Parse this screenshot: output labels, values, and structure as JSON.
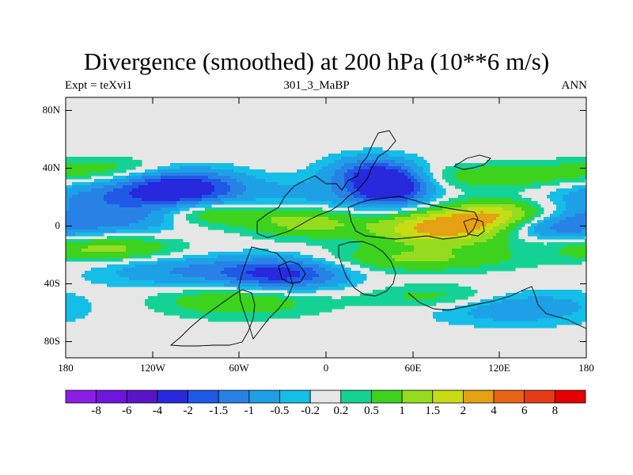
{
  "title": "Divergence (smoothed) at 200 hPa (10**6 m/s)",
  "subtitle_left": "Expt = teXvi1",
  "subtitle_center": "301_3_MaBP",
  "subtitle_right": "ANN",
  "y_axis_labels": [
    "80N",
    "40N",
    "0",
    "40S",
    "80S"
  ],
  "x_axis_labels": [
    "180",
    "120W",
    "60W",
    "0",
    "60E",
    "120E",
    "180"
  ],
  "colorbar": {
    "labels": [
      "-8",
      "-6",
      "-4",
      "-2",
      "-1.5",
      "-1",
      "-0.5",
      "-0.2",
      "0.2",
      "0.5",
      "1",
      "1.5",
      "2",
      "4",
      "6",
      "8"
    ],
    "colors": [
      "#8c1ee6",
      "#6e14dc",
      "#5a14c8",
      "#2828dc",
      "#1e5ae6",
      "#2882e6",
      "#1ea0e6",
      "#14bee6",
      "#e6e6e6",
      "#14d296",
      "#3cd21e",
      "#96dc1e",
      "#c8dc14",
      "#e6a014",
      "#e66414",
      "#e63c14",
      "#e60000"
    ]
  },
  "chart_data": {
    "type": "heatmap",
    "title": "Divergence (smoothed) at 200 hPa (10**6 m/s)",
    "experiment": "teXvi1",
    "case": "301_3_MaBP",
    "season": "ANN",
    "units": "10**6 m/s",
    "lon_range": [
      -180,
      180
    ],
    "lat_range": [
      -90,
      90
    ],
    "contour_levels": [
      -8,
      -6,
      -4,
      -2,
      -1.5,
      -1,
      -0.5,
      -0.2,
      0.2,
      0.5,
      1,
      1.5,
      2,
      4,
      6,
      8
    ],
    "features": [
      {
        "lon": -100,
        "lat": 28,
        "value": -2.5,
        "sigma_lon": 28,
        "sigma_lat": 9
      },
      {
        "lon": -150,
        "lat": 20,
        "value": -1.2,
        "sigma_lon": 40,
        "sigma_lat": 9
      },
      {
        "lon": 45,
        "lat": 28,
        "value": -2.5,
        "sigma_lon": 18,
        "sigma_lat": 9
      },
      {
        "lon": 30,
        "lat": 38,
        "value": -1.5,
        "sigma_lon": 20,
        "sigma_lat": 8
      },
      {
        "lon": 0,
        "lat": 20,
        "value": -0.8,
        "sigma_lon": 45,
        "sigma_lat": 10
      },
      {
        "lon": -30,
        "lat": -32,
        "value": -2.2,
        "sigma_lon": 30,
        "sigma_lat": 8
      },
      {
        "lon": -100,
        "lat": -30,
        "value": -1.0,
        "sigma_lon": 40,
        "sigma_lat": 8
      },
      {
        "lon": 150,
        "lat": 0,
        "value": -1.4,
        "sigma_lon": 30,
        "sigma_lat": 6
      },
      {
        "lon": -150,
        "lat": 5,
        "value": -1.0,
        "sigma_lon": 35,
        "sigma_lat": 6
      },
      {
        "lon": 130,
        "lat": -55,
        "value": -1.0,
        "sigma_lon": 40,
        "sigma_lat": 8
      },
      {
        "lon": 80,
        "lat": 0,
        "value": 2.3,
        "sigma_lon": 35,
        "sigma_lat": 9
      },
      {
        "lon": 120,
        "lat": 8,
        "value": 1.6,
        "sigma_lon": 25,
        "sigma_lat": 8
      },
      {
        "lon": -15,
        "lat": 5,
        "value": 1.4,
        "sigma_lon": 28,
        "sigma_lat": 8
      },
      {
        "lon": -80,
        "lat": 10,
        "value": 1.2,
        "sigma_lon": 25,
        "sigma_lat": 6
      },
      {
        "lon": -150,
        "lat": -15,
        "value": 1.2,
        "sigma_lon": 35,
        "sigma_lat": 6
      },
      {
        "lon": 60,
        "lat": -22,
        "value": 1.0,
        "sigma_lon": 50,
        "sigma_lat": 6
      },
      {
        "lon": -60,
        "lat": -50,
        "value": 1.0,
        "sigma_lon": 40,
        "sigma_lat": 8
      },
      {
        "lon": -150,
        "lat": 40,
        "value": 0.8,
        "sigma_lon": 40,
        "sigma_lat": 6
      },
      {
        "lon": 120,
        "lat": 35,
        "value": 0.9,
        "sigma_lon": 40,
        "sigma_lat": 6
      },
      {
        "lon": 80,
        "lat": -48,
        "value": 0.8,
        "sigma_lon": 35,
        "sigma_lat": 6
      }
    ],
    "data_lat_extent": [
      -80,
      55
    ],
    "coastline": "simplified paleogeography outlines (black)"
  }
}
